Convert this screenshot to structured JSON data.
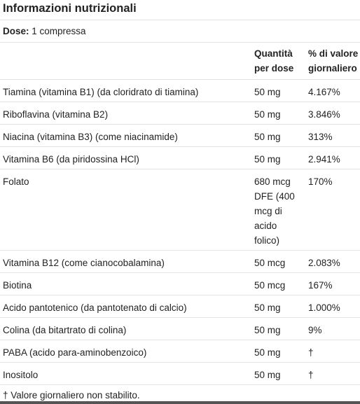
{
  "title": "Informazioni nutrizionali",
  "serving": {
    "label": "Dose:",
    "value": "1 compressa"
  },
  "columns": {
    "amount": "Quantità per dose",
    "dv": "% di valore giornaliero"
  },
  "rows": [
    {
      "name": "Tiamina (vitamina B1) (da cloridrato di tiamina)",
      "amount": "50 mg",
      "dv": "4.167%"
    },
    {
      "name": "Riboflavina (vitamina B2)",
      "amount": "50 mg",
      "dv": "3.846%"
    },
    {
      "name": "Niacina (vitamina B3) (come niacinamide)",
      "amount": "50 mg",
      "dv": "313%"
    },
    {
      "name": "Vitamina B6 (da piridossina HCl)",
      "amount": "50 mg",
      "dv": "2.941%"
    },
    {
      "name": "Folato",
      "amount": "680 mcg DFE (400 mcg di acido folico)",
      "dv": "170%"
    },
    {
      "name": "Vitamina B12 (come cianocobalamina)",
      "amount": "50 mcg",
      "dv": "2.083%"
    },
    {
      "name": "Biotina",
      "amount": "50 mcg",
      "dv": "167%"
    },
    {
      "name": "Acido pantotenico (da pantotenato di calcio)",
      "amount": "50 mg",
      "dv": "1.000%"
    },
    {
      "name": "Colina (da bitartrato di colina)",
      "amount": "50 mg",
      "dv": "9%"
    },
    {
      "name": "PABA (acido para-aminobenzoico)",
      "amount": "50 mg",
      "dv": "†"
    },
    {
      "name": "Inositolo",
      "amount": "50 mg",
      "dv": "†"
    }
  ],
  "footnote": "† Valore giornaliero non stabilito."
}
